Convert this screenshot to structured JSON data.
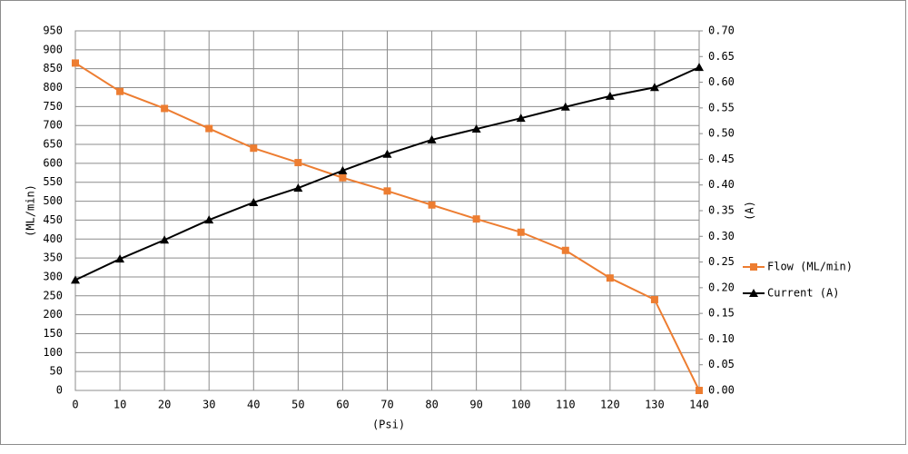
{
  "chart_data": {
    "type": "line",
    "x": [
      0,
      10,
      20,
      30,
      40,
      50,
      60,
      70,
      80,
      90,
      100,
      110,
      120,
      130,
      140
    ],
    "series": [
      {
        "name": "Flow (ML/min)",
        "color": "#ed7d31",
        "marker": "square",
        "axis": "y",
        "values": [
          865,
          790,
          745,
          692,
          640,
          602,
          562,
          527,
          490,
          453,
          418,
          370,
          297,
          240,
          0
        ]
      },
      {
        "name": "Current (A)",
        "color": "#000000",
        "marker": "triangle",
        "axis": "y2",
        "values": [
          0.215,
          0.256,
          0.293,
          0.332,
          0.366,
          0.394,
          0.428,
          0.46,
          0.488,
          0.509,
          0.53,
          0.552,
          0.573,
          0.59,
          0.629
        ]
      }
    ],
    "xlabel": "(Psi)",
    "ylabel": "(ML/min)",
    "y2label": "(A)",
    "xlim": [
      0,
      140
    ],
    "xticks": [
      0,
      10,
      20,
      30,
      40,
      50,
      60,
      70,
      80,
      90,
      100,
      110,
      120,
      130,
      140
    ],
    "ylim": [
      0,
      950
    ],
    "yticks": [
      0,
      50,
      100,
      150,
      200,
      250,
      300,
      350,
      400,
      450,
      500,
      550,
      600,
      650,
      700,
      750,
      800,
      850,
      900,
      950
    ],
    "y2lim": [
      0,
      0.7
    ],
    "y2ticks": [
      {
        "value": 0,
        "label": "0.00"
      },
      {
        "value": 0.05,
        "label": "0.05"
      },
      {
        "value": 0.1,
        "label": "0.10"
      },
      {
        "value": 0.15,
        "label": "0.15"
      },
      {
        "value": 0.2,
        "label": "0.20"
      },
      {
        "value": 0.25,
        "label": "0.25"
      },
      {
        "value": 0.3,
        "label": "0.30"
      },
      {
        "value": 0.35,
        "label": "0.35"
      },
      {
        "value": 0.4,
        "label": "0.40"
      },
      {
        "value": 0.45,
        "label": "0.45"
      },
      {
        "value": 0.5,
        "label": "0.50"
      },
      {
        "value": 0.55,
        "label": "0.55"
      },
      {
        "value": 0.6,
        "label": "0.60"
      },
      {
        "value": 0.65,
        "label": "0.65"
      },
      {
        "value": 0.7,
        "label": "0.70"
      }
    ],
    "grid": true,
    "legend": "right"
  }
}
